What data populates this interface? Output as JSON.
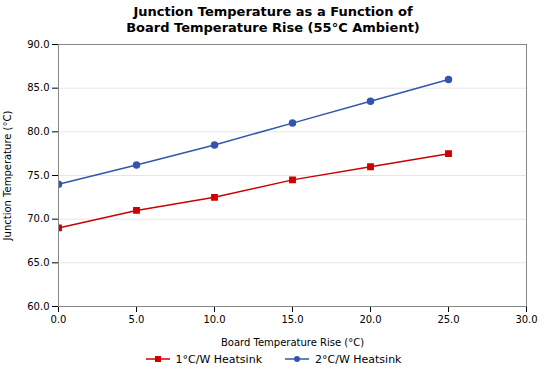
{
  "chart_data": {
    "type": "line",
    "title": "Junction Temperature as a Function of\nBoard Temperature Rise (55°C Ambient)",
    "x_label": "Board Temperature Rise (°C)",
    "y_label": "Junction Temperature (°C)",
    "x": [
      0,
      5,
      10,
      15,
      20,
      25
    ],
    "series": [
      {
        "name": "1°C/W Heatsink",
        "color": "#cc0000",
        "marker": "square",
        "values": [
          69.0,
          71.0,
          72.5,
          74.5,
          76.0,
          77.5
        ]
      },
      {
        "name": "2°C/W Heatsink",
        "color": "#3355aa",
        "marker": "circle",
        "values": [
          74.0,
          76.2,
          78.5,
          81.0,
          83.5,
          86.0
        ]
      }
    ],
    "xlim": [
      0,
      30
    ],
    "xticks": [
      {
        "value": 0,
        "label": "0.0"
      },
      {
        "value": 5,
        "label": "5.0"
      },
      {
        "value": 10,
        "label": "10.0"
      },
      {
        "value": 15,
        "label": "15.0"
      },
      {
        "value": 20,
        "label": "20.0"
      },
      {
        "value": 25,
        "label": "25.0"
      },
      {
        "value": 30,
        "label": "30.0"
      }
    ],
    "ylim": [
      60.0,
      90.0
    ],
    "yticks": [
      {
        "value": 60.0,
        "label": "60.0"
      },
      {
        "value": 65.0,
        "label": "65.0"
      },
      {
        "value": 70.0,
        "label": "70.0"
      },
      {
        "value": 75.0,
        "label": "75.0"
      },
      {
        "value": 80.0,
        "label": "80.0"
      },
      {
        "value": 85.0,
        "label": "85.0"
      },
      {
        "value": 90.0,
        "label": "90.0"
      }
    ],
    "grid": "y",
    "legend": "bottom"
  }
}
